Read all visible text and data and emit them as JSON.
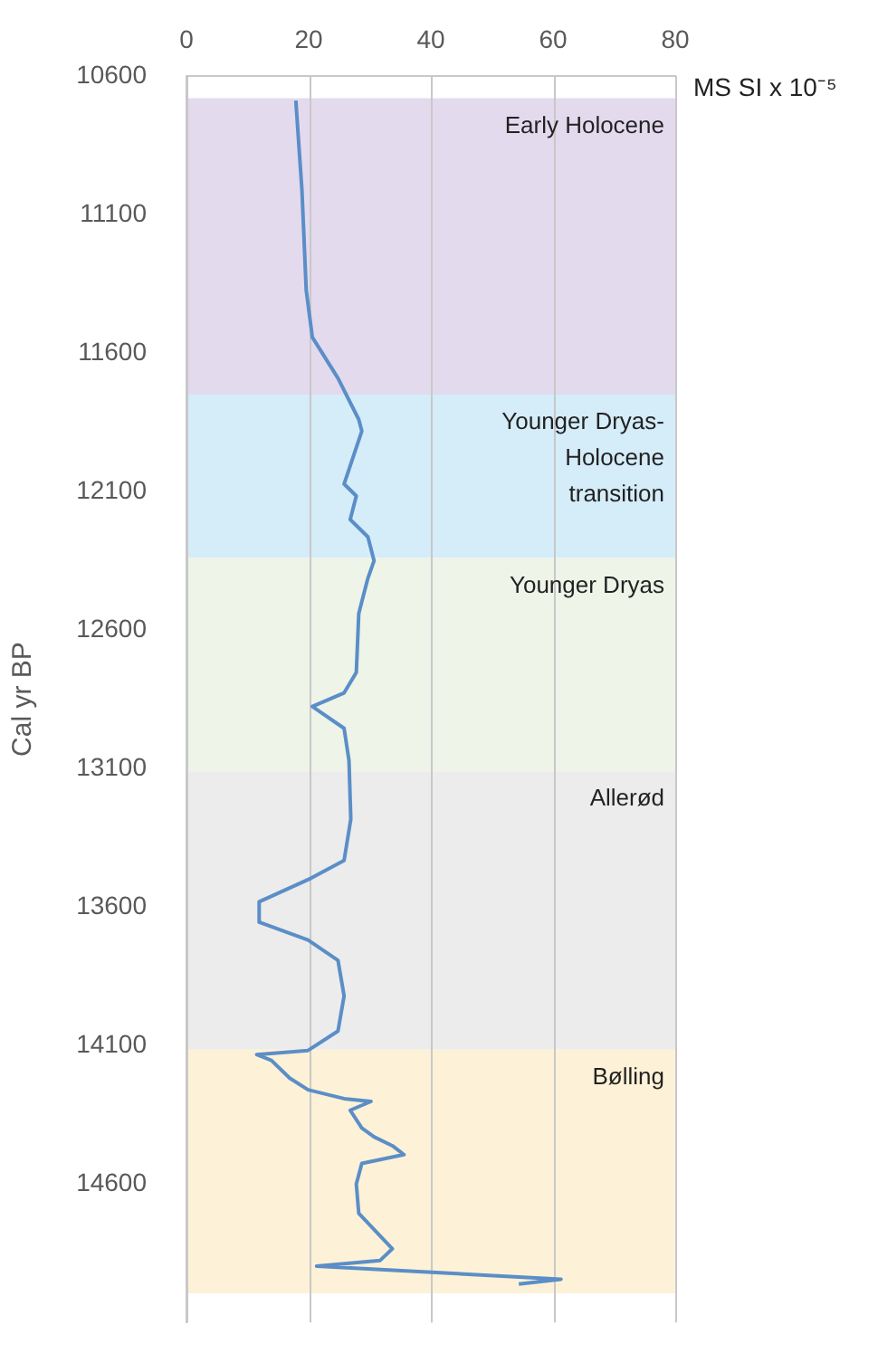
{
  "chart_data": {
    "type": "line",
    "xlabel": "MS SI x 10⁻⁵",
    "ylabel": "Cal yr BP",
    "xlim": [
      0,
      80
    ],
    "xticks": [
      0,
      20,
      40,
      60,
      80
    ],
    "ylim": [
      15100,
      10600
    ],
    "yticks": [
      10600,
      11100,
      11600,
      12100,
      12600,
      13100,
      13600,
      14100,
      14600
    ],
    "grid": "x",
    "marker": "none",
    "line_style": "solid",
    "bands": [
      {
        "axis": "y",
        "from": 10680,
        "to": 11750,
        "label": "Early Holocene",
        "color": "#e3daee"
      },
      {
        "axis": "y",
        "from": 11750,
        "to": 12340,
        "label": "Younger Dryas-Holocene transition",
        "color": "#d5ecf9"
      },
      {
        "axis": "y",
        "from": 12340,
        "to": 13110,
        "label": "Younger Dryas",
        "color": "#eef4e8"
      },
      {
        "axis": "y",
        "from": 13110,
        "to": 14115,
        "label": "Allerød",
        "color": "#ececec"
      },
      {
        "axis": "y",
        "from": 14115,
        "to": 14995,
        "label": "Bølling",
        "color": "#fdf2d7"
      }
    ],
    "series": [
      {
        "color": "#5b8ec7",
        "x": [
          17.9,
          18.9,
          19.6,
          20.6,
          24.8,
          28.2,
          28.7,
          25.8,
          27.8,
          26.8,
          29.7,
          30.7,
          29.7,
          28.7,
          28.2,
          27.8,
          25.8,
          20.6,
          25.8,
          26.6,
          26.9,
          25.8,
          20.4,
          11.9,
          11.9,
          19.9,
          24.8,
          25.8,
          24.8,
          19.9,
          11.5,
          13.9,
          16.9,
          19.9,
          25.8,
          30.2,
          26.8,
          28.7,
          30.7,
          33.7,
          35.6,
          28.7,
          27.8,
          28.2,
          33.7,
          31.7,
          21.3,
          61.3,
          54.4
        ],
        "values": [
          10689,
          11012,
          11373,
          11543,
          11691,
          11840,
          11882,
          12073,
          12116,
          12201,
          12264,
          12350,
          12413,
          12498,
          12541,
          12753,
          12827,
          12876,
          12955,
          13071,
          13283,
          13432,
          13496,
          13581,
          13655,
          13719,
          13793,
          13921,
          14048,
          14118,
          14133,
          14154,
          14218,
          14260,
          14292,
          14302,
          14334,
          14398,
          14430,
          14462,
          14494,
          14526,
          14600,
          14706,
          14834,
          14876,
          14897,
          14944,
          14961
        ]
      }
    ]
  }
}
